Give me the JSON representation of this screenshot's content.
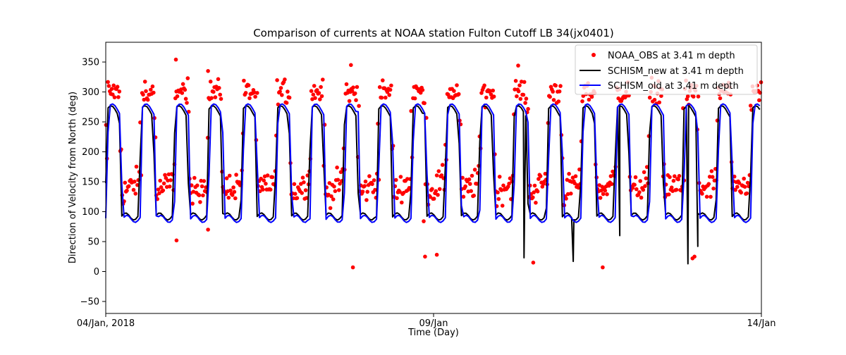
{
  "chart_data": {
    "type": "line",
    "title": "Comparison of currents at NOAA station Fulton Cutoff LB 34(jx0401)",
    "xlabel": "Time (Day)",
    "ylabel": "Direction of Velocity from North (deg)",
    "xlim": [
      0,
      10
    ],
    "ylim": [
      -70,
      383
    ],
    "x_ticks": [
      {
        "value": 0,
        "label": "04/Jan, 2018"
      },
      {
        "value": 5,
        "label": "09/Jan"
      },
      {
        "value": 10,
        "label": "14/Jan"
      }
    ],
    "y_ticks": [
      {
        "value": -50,
        "label": "−50"
      },
      {
        "value": 0,
        "label": "0"
      },
      {
        "value": 50,
        "label": "50"
      },
      {
        "value": 100,
        "label": "100"
      },
      {
        "value": 150,
        "label": "150"
      },
      {
        "value": 200,
        "label": "200"
      },
      {
        "value": 250,
        "label": "250"
      },
      {
        "value": 300,
        "label": "300"
      },
      {
        "value": 350,
        "label": "350"
      }
    ],
    "legend_position": "top-right",
    "tidal_period_days": 0.5175,
    "ebb_phase_start_day": 0.0,
    "series": [
      {
        "name": "NOAA_OBS at 3.41 m depth",
        "kind": "scatter",
        "color": "#ff0000",
        "ebb_mean_deg": 300,
        "flood_mean_deg": 140,
        "outliers": [
          {
            "x": 1.08,
            "y": 52
          },
          {
            "x": 1.56,
            "y": 70
          },
          {
            "x": 3.77,
            "y": 7
          },
          {
            "x": 4.85,
            "y": 84
          },
          {
            "x": 4.87,
            "y": 25
          },
          {
            "x": 5.05,
            "y": 28
          },
          {
            "x": 6.52,
            "y": 15
          },
          {
            "x": 7.58,
            "y": 7
          },
          {
            "x": 8.95,
            "y": 22
          },
          {
            "x": 8.98,
            "y": 25
          },
          {
            "x": 6.29,
            "y": 344
          },
          {
            "x": 1.07,
            "y": 354
          },
          {
            "x": 1.56,
            "y": 335
          },
          {
            "x": 3.74,
            "y": 345
          }
        ]
      },
      {
        "name": "SCHISM_new at 3.41 m depth",
        "kind": "line",
        "color": "#000000",
        "ebb_level_deg": 265,
        "flood_level_deg": 92,
        "spikes": [
          {
            "x": 6.38,
            "y": 23
          },
          {
            "x": 7.13,
            "y": 17
          },
          {
            "x": 7.84,
            "y": 60
          },
          {
            "x": 8.88,
            "y": 13
          },
          {
            "x": 9.03,
            "y": 42
          }
        ]
      },
      {
        "name": "SCHISM_old at 3.41 m depth",
        "kind": "line",
        "color": "#0000ff",
        "ebb_level_deg": 268,
        "flood_level_deg": 88
      }
    ]
  }
}
